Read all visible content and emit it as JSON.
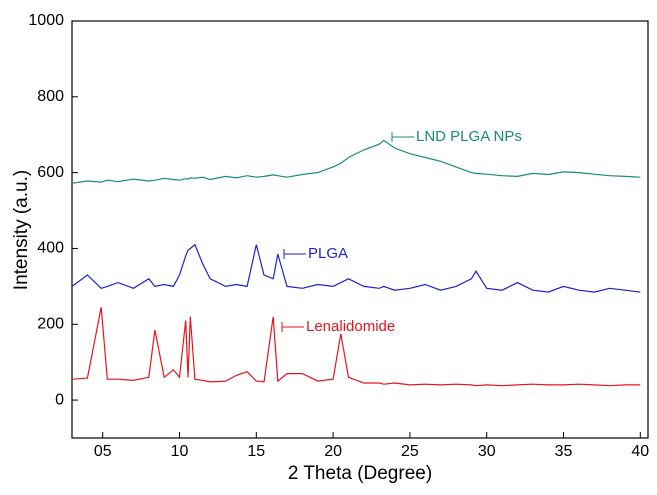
{
  "chart_data": {
    "type": "line",
    "x_label": "2 Theta (Degree)",
    "y_label": "Intensity (a.u.)",
    "x": [
      3,
      4,
      4.9,
      5.3,
      6,
      7,
      8,
      8.4,
      9,
      9.6,
      10,
      10.4,
      10.55,
      10.7,
      11,
      11.5,
      12,
      13,
      13.7,
      14.4,
      15,
      15.5,
      16.1,
      16.4,
      17,
      18,
      19,
      20,
      20.5,
      21,
      22,
      23,
      23.3,
      24,
      25,
      26,
      27,
      28,
      29,
      29.3,
      30,
      31,
      32,
      33,
      34,
      35,
      36,
      37,
      38,
      39,
      40
    ],
    "series": [
      {
        "name": "LND PLGA NPs",
        "color": "#1a8a7e",
        "values": [
          572,
          578,
          575,
          580,
          576,
          583,
          578,
          580,
          585,
          582,
          580,
          584,
          583,
          586,
          585,
          588,
          582,
          590,
          586,
          592,
          588,
          590,
          594,
          592,
          588,
          595,
          600,
          615,
          625,
          640,
          660,
          675,
          685,
          665,
          650,
          640,
          630,
          615,
          600,
          598,
          596,
          592,
          590,
          598,
          595,
          602,
          600,
          596,
          592,
          590,
          588
        ]
      },
      {
        "name": "PLGA",
        "color": "#1f1fd6",
        "values": [
          300,
          330,
          295,
          300,
          310,
          295,
          320,
          300,
          305,
          300,
          330,
          380,
          395,
          400,
          410,
          360,
          320,
          300,
          305,
          300,
          410,
          330,
          320,
          385,
          300,
          295,
          305,
          300,
          310,
          320,
          300,
          295,
          300,
          290,
          295,
          305,
          290,
          300,
          320,
          340,
          295,
          290,
          310,
          290,
          285,
          300,
          290,
          285,
          295,
          290,
          285
        ]
      },
      {
        "name": "Lenalidomide",
        "color": "#e8141c",
        "values": [
          55,
          58,
          245,
          55,
          55,
          52,
          60,
          185,
          60,
          80,
          60,
          210,
          60,
          220,
          55,
          52,
          48,
          50,
          65,
          75,
          50,
          48,
          220,
          50,
          70,
          70,
          50,
          55,
          175,
          60,
          45,
          45,
          42,
          45,
          40,
          42,
          40,
          42,
          40,
          38,
          40,
          38,
          40,
          42,
          40,
          40,
          42,
          40,
          38,
          40,
          40
        ]
      }
    ],
    "xlim": [
      3,
      40.5
    ],
    "ylim": [
      -100,
      1000
    ],
    "xticks": [
      {
        "value": 5,
        "label": "05"
      },
      10,
      15,
      20,
      25,
      30,
      35,
      40
    ],
    "yticks": [
      0,
      200,
      400,
      600,
      800,
      1000
    ]
  }
}
